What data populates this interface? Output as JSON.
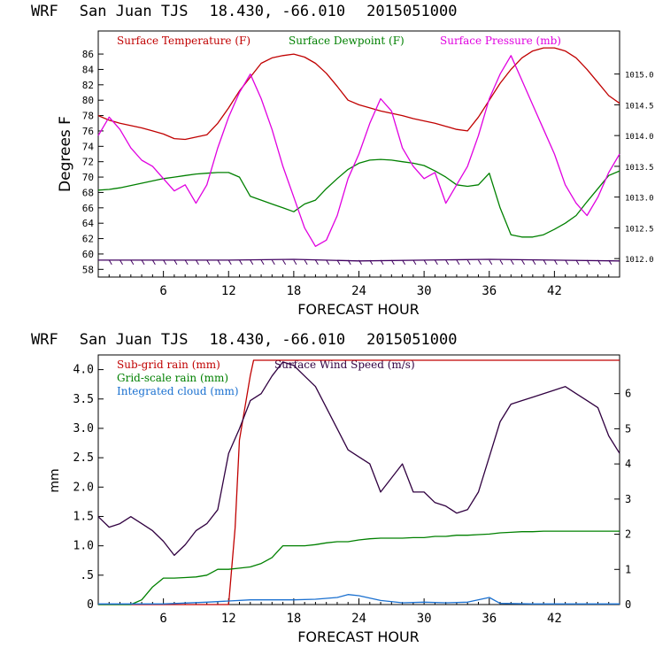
{
  "chart_data": [
    {
      "type": "line",
      "header": {
        "model": "WRF",
        "station": "San Juan TJS",
        "coords": "18.430, -66.010",
        "init_time": "2015051000"
      },
      "xlabel": "FORECAST HOUR",
      "ylabel": "Degrees F",
      "xlim": [
        0,
        48
      ],
      "ylim": [
        57,
        89
      ],
      "y2lim": [
        1011.7,
        1015.7
      ],
      "x_ticks": [
        "6",
        "12",
        "18",
        "24",
        "30",
        "36",
        "42"
      ],
      "y_ticks": [
        "58",
        "60",
        "62",
        "64",
        "66",
        "68",
        "70",
        "72",
        "74",
        "76",
        "78",
        "80",
        "82",
        "84",
        "86"
      ],
      "y2_ticks": [
        "1012.0",
        "1012.5",
        "1013.0",
        "1013.5",
        "1014.0",
        "1014.5",
        "1015.0"
      ],
      "grid": false,
      "legend_position": "top",
      "series": [
        {
          "name": "Surface Temperature (F)",
          "color": "#c00000",
          "axis": "left",
          "x": [
            0,
            1,
            2,
            3,
            4,
            5,
            6,
            7,
            8,
            9,
            10,
            11,
            12,
            13,
            14,
            15,
            16,
            17,
            18,
            19,
            20,
            21,
            22,
            23,
            24,
            25,
            26,
            27,
            28,
            29,
            30,
            31,
            32,
            33,
            34,
            35,
            36,
            37,
            38,
            39,
            40,
            41,
            42,
            43,
            44,
            45,
            46,
            47,
            48
          ],
          "values": [
            78.0,
            77.4,
            77.0,
            76.7,
            76.4,
            76.0,
            75.6,
            75.0,
            74.9,
            75.2,
            75.5,
            77.0,
            79.0,
            81.2,
            83.0,
            84.8,
            85.5,
            85.8,
            86.0,
            85.6,
            84.8,
            83.5,
            81.8,
            80.0,
            79.4,
            79.0,
            78.6,
            78.3,
            78.0,
            77.6,
            77.3,
            77.0,
            76.6,
            76.2,
            76.0,
            77.8,
            80.0,
            82.2,
            84.0,
            85.5,
            86.4,
            86.8,
            86.8,
            86.4,
            85.5,
            84.0,
            82.3,
            80.6,
            79.6
          ]
        },
        {
          "name": "Surface Dewpoint (F)",
          "color": "#008000",
          "axis": "left",
          "x": [
            0,
            1,
            2,
            3,
            4,
            5,
            6,
            7,
            8,
            9,
            10,
            11,
            12,
            13,
            14,
            15,
            16,
            17,
            18,
            19,
            20,
            21,
            22,
            23,
            24,
            25,
            26,
            27,
            28,
            29,
            30,
            31,
            32,
            33,
            34,
            35,
            36,
            37,
            38,
            39,
            40,
            41,
            42,
            43,
            44,
            45,
            46,
            47,
            48
          ],
          "values": [
            68.3,
            68.4,
            68.6,
            68.9,
            69.2,
            69.5,
            69.8,
            70.0,
            70.2,
            70.4,
            70.5,
            70.6,
            70.6,
            70.0,
            67.5,
            67.0,
            66.5,
            66.0,
            65.5,
            66.5,
            67.0,
            68.5,
            69.8,
            71.0,
            71.8,
            72.2,
            72.3,
            72.2,
            72.0,
            71.8,
            71.5,
            70.8,
            70.0,
            69.0,
            68.8,
            69.0,
            70.5,
            66.0,
            62.5,
            62.2,
            62.2,
            62.5,
            63.2,
            64.0,
            65.0,
            66.8,
            68.5,
            70.2,
            70.8
          ]
        },
        {
          "name": "Surface Pressure (mb)",
          "color": "#e000e0",
          "axis": "right",
          "x": [
            0,
            1,
            2,
            3,
            4,
            5,
            6,
            7,
            8,
            9,
            10,
            11,
            12,
            13,
            14,
            15,
            16,
            17,
            18,
            19,
            20,
            21,
            22,
            23,
            24,
            25,
            26,
            27,
            28,
            29,
            30,
            31,
            32,
            33,
            34,
            35,
            36,
            37,
            38,
            39,
            40,
            41,
            42,
            43,
            44,
            45,
            46,
            47,
            48
          ],
          "values": [
            1014.0,
            1014.3,
            1014.1,
            1013.8,
            1013.6,
            1013.5,
            1013.3,
            1013.1,
            1013.2,
            1012.9,
            1013.2,
            1013.8,
            1014.3,
            1014.7,
            1015.0,
            1014.6,
            1014.1,
            1013.5,
            1013.0,
            1012.5,
            1012.2,
            1012.3,
            1012.7,
            1013.3,
            1013.7,
            1014.2,
            1014.6,
            1014.4,
            1013.8,
            1013.5,
            1013.3,
            1013.4,
            1012.9,
            1013.2,
            1013.5,
            1014.0,
            1014.6,
            1015.0,
            1015.3,
            1014.9,
            1014.5,
            1014.1,
            1013.7,
            1013.2,
            1012.9,
            1012.7,
            1013.0,
            1013.4,
            1013.7
          ]
        },
        {
          "name": "",
          "color": "#400060",
          "axis": "left",
          "x": [
            0,
            6,
            12,
            18,
            24,
            30,
            36,
            42,
            48
          ],
          "values": [
            59.2,
            59.2,
            59.2,
            59.3,
            59.1,
            59.2,
            59.3,
            59.2,
            59.1
          ]
        }
      ]
    },
    {
      "type": "line",
      "header": {
        "model": "WRF",
        "station": "San Juan TJS",
        "coords": "18.430, -66.010",
        "init_time": "2015051000"
      },
      "xlabel": "FORECAST HOUR",
      "ylabel": "mm",
      "xlim": [
        0,
        48
      ],
      "ylim": [
        0,
        4.25
      ],
      "y2lim": [
        0,
        7.1
      ],
      "x_ticks": [
        "6",
        "12",
        "18",
        "24",
        "30",
        "36",
        "42"
      ],
      "y_ticks": [
        "0",
        ".5",
        "1.0",
        "1.5",
        "2.0",
        "2.5",
        "3.0",
        "3.5",
        "4.0"
      ],
      "y2_ticks": [
        "0",
        "1",
        "2",
        "3",
        "4",
        "5",
        "6"
      ],
      "grid": false,
      "legend_position": "top-left",
      "series": [
        {
          "name": "Sub-grid rain (mm)",
          "color": "#c00000",
          "axis": "left",
          "x": [
            0,
            12,
            12.6,
            13.0,
            14.0,
            14.3,
            48
          ],
          "values": [
            0,
            0,
            1.3,
            2.8,
            3.9,
            4.16,
            4.16
          ]
        },
        {
          "name": "Grid-scale rain (mm)",
          "color": "#008000",
          "axis": "left",
          "x": [
            0,
            3,
            4,
            5,
            6,
            7,
            8,
            9,
            10,
            11,
            12,
            13,
            14,
            15,
            16,
            17,
            18,
            19,
            20,
            21,
            22,
            23,
            24,
            25,
            26,
            27,
            28,
            29,
            30,
            31,
            32,
            33,
            34,
            35,
            36,
            37,
            38,
            39,
            40,
            41,
            42,
            43,
            44,
            45,
            46,
            47,
            48
          ],
          "values": [
            0,
            0,
            0.08,
            0.3,
            0.45,
            0.45,
            0.46,
            0.47,
            0.5,
            0.6,
            0.6,
            0.62,
            0.64,
            0.7,
            0.8,
            1.0,
            1.0,
            1.0,
            1.02,
            1.05,
            1.07,
            1.07,
            1.1,
            1.12,
            1.13,
            1.13,
            1.13,
            1.14,
            1.14,
            1.16,
            1.16,
            1.18,
            1.18,
            1.19,
            1.2,
            1.22,
            1.23,
            1.24,
            1.24,
            1.25,
            1.25,
            1.25,
            1.25,
            1.25,
            1.25,
            1.25,
            1.25
          ]
        },
        {
          "name": "Integrated cloud (mm)",
          "color": "#1a70d0",
          "axis": "left",
          "x": [
            0,
            6,
            10,
            12,
            14,
            16,
            18,
            20,
            22,
            23,
            24,
            26,
            28,
            30,
            32,
            34,
            36,
            37,
            40,
            42,
            44,
            46,
            48
          ],
          "values": [
            0.01,
            0.01,
            0.04,
            0.06,
            0.08,
            0.08,
            0.08,
            0.09,
            0.12,
            0.17,
            0.15,
            0.07,
            0.03,
            0.04,
            0.03,
            0.04,
            0.12,
            0.02,
            0.01,
            0.01,
            0.01,
            0.01,
            0.01
          ]
        },
        {
          "name": "Surface Wind Speed (m/s)",
          "color": "#300040",
          "axis": "right",
          "x": [
            0,
            1,
            2,
            3,
            4,
            5,
            6,
            7,
            8,
            9,
            10,
            11,
            12,
            13,
            14,
            15,
            16,
            17,
            18,
            19,
            20,
            21,
            22,
            23,
            24,
            25,
            26,
            27,
            28,
            29,
            30,
            31,
            32,
            33,
            34,
            35,
            36,
            37,
            38,
            39,
            40,
            41,
            42,
            43,
            44,
            45,
            46,
            47,
            48
          ],
          "values": [
            2.5,
            2.2,
            2.3,
            2.5,
            2.3,
            2.1,
            1.8,
            1.4,
            1.7,
            2.1,
            2.3,
            2.7,
            4.3,
            5.0,
            5.8,
            6.0,
            6.5,
            6.9,
            6.8,
            6.5,
            6.2,
            5.6,
            5.0,
            4.4,
            4.2,
            4.0,
            3.2,
            3.6,
            4.0,
            3.2,
            3.2,
            2.9,
            2.8,
            2.6,
            2.7,
            3.2,
            4.2,
            5.2,
            5.7,
            5.8,
            5.9,
            6.0,
            6.1,
            6.2,
            6.0,
            5.8,
            5.6,
            4.8,
            4.3
          ]
        }
      ]
    }
  ]
}
